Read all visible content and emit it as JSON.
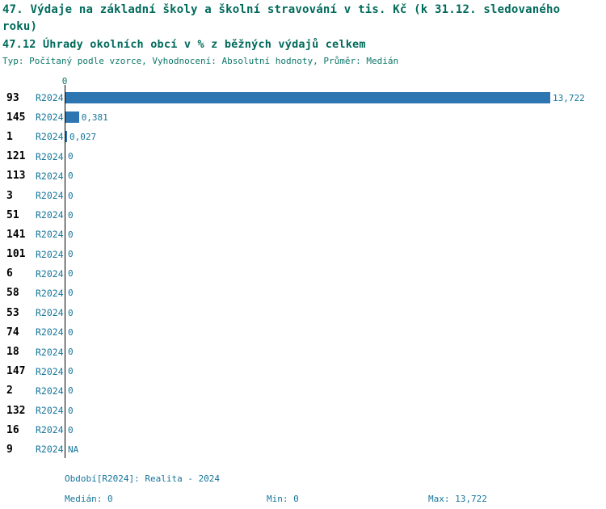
{
  "header": {
    "title_line1": "47. Výdaje na základní školy a školní stravování v tis. Kč (k 31.12. sledovaného roku)",
    "title_line2": "47.12 Úhrady okolních obcí v % z běžných výdajů celkem",
    "subtitle": "Typ: Počítaný podle vzorce, Vyhodnocení: Absolutní hodnoty, Průměr: Medián"
  },
  "axis": {
    "zero_label": "0"
  },
  "chart_data": {
    "type": "bar",
    "orientation": "horizontal",
    "title": "47.12 Úhrady okolních obcí v % z běžných výdajů celkem",
    "xlim": [
      0,
      13.722
    ],
    "max_value": 13.722,
    "grid": false,
    "period": "R2024",
    "categories": [
      "93",
      "145",
      "1",
      "121",
      "113",
      "3",
      "51",
      "141",
      "101",
      "6",
      "58",
      "53",
      "74",
      "18",
      "147",
      "2",
      "132",
      "16",
      "9"
    ],
    "values": [
      13.722,
      0.381,
      0.027,
      0,
      0,
      0,
      0,
      0,
      0,
      0,
      0,
      0,
      0,
      0,
      0,
      0,
      0,
      0,
      null
    ],
    "rows": [
      {
        "id": "93",
        "period": "R2024",
        "value": 13.722,
        "label": "13,722"
      },
      {
        "id": "145",
        "period": "R2024",
        "value": 0.381,
        "label": "0,381"
      },
      {
        "id": "1",
        "period": "R2024",
        "value": 0.027,
        "label": "0,027"
      },
      {
        "id": "121",
        "period": "R2024",
        "value": 0,
        "label": "0"
      },
      {
        "id": "113",
        "period": "R2024",
        "value": 0,
        "label": "0"
      },
      {
        "id": "3",
        "period": "R2024",
        "value": 0,
        "label": "0"
      },
      {
        "id": "51",
        "period": "R2024",
        "value": 0,
        "label": "0"
      },
      {
        "id": "141",
        "period": "R2024",
        "value": 0,
        "label": "0"
      },
      {
        "id": "101",
        "period": "R2024",
        "value": 0,
        "label": "0"
      },
      {
        "id": "6",
        "period": "R2024",
        "value": 0,
        "label": "0"
      },
      {
        "id": "58",
        "period": "R2024",
        "value": 0,
        "label": "0"
      },
      {
        "id": "53",
        "period": "R2024",
        "value": 0,
        "label": "0"
      },
      {
        "id": "74",
        "period": "R2024",
        "value": 0,
        "label": "0"
      },
      {
        "id": "18",
        "period": "R2024",
        "value": 0,
        "label": "0"
      },
      {
        "id": "147",
        "period": "R2024",
        "value": 0,
        "label": "0"
      },
      {
        "id": "2",
        "period": "R2024",
        "value": 0,
        "label": "0"
      },
      {
        "id": "132",
        "period": "R2024",
        "value": 0,
        "label": "0"
      },
      {
        "id": "16",
        "period": "R2024",
        "value": 0,
        "label": "0"
      },
      {
        "id": "9",
        "period": "R2024",
        "value": null,
        "label": "NA"
      }
    ],
    "colors": {
      "bar": "#2e76b2",
      "accent_text": "#16759b",
      "title_text": "#006a5b",
      "axis": "#000000"
    }
  },
  "footer": {
    "period_label": "Období[R2024]: Realita - 2024",
    "median": "Medián: 0",
    "min": "Min: 0",
    "max": "Max: 13,722"
  }
}
